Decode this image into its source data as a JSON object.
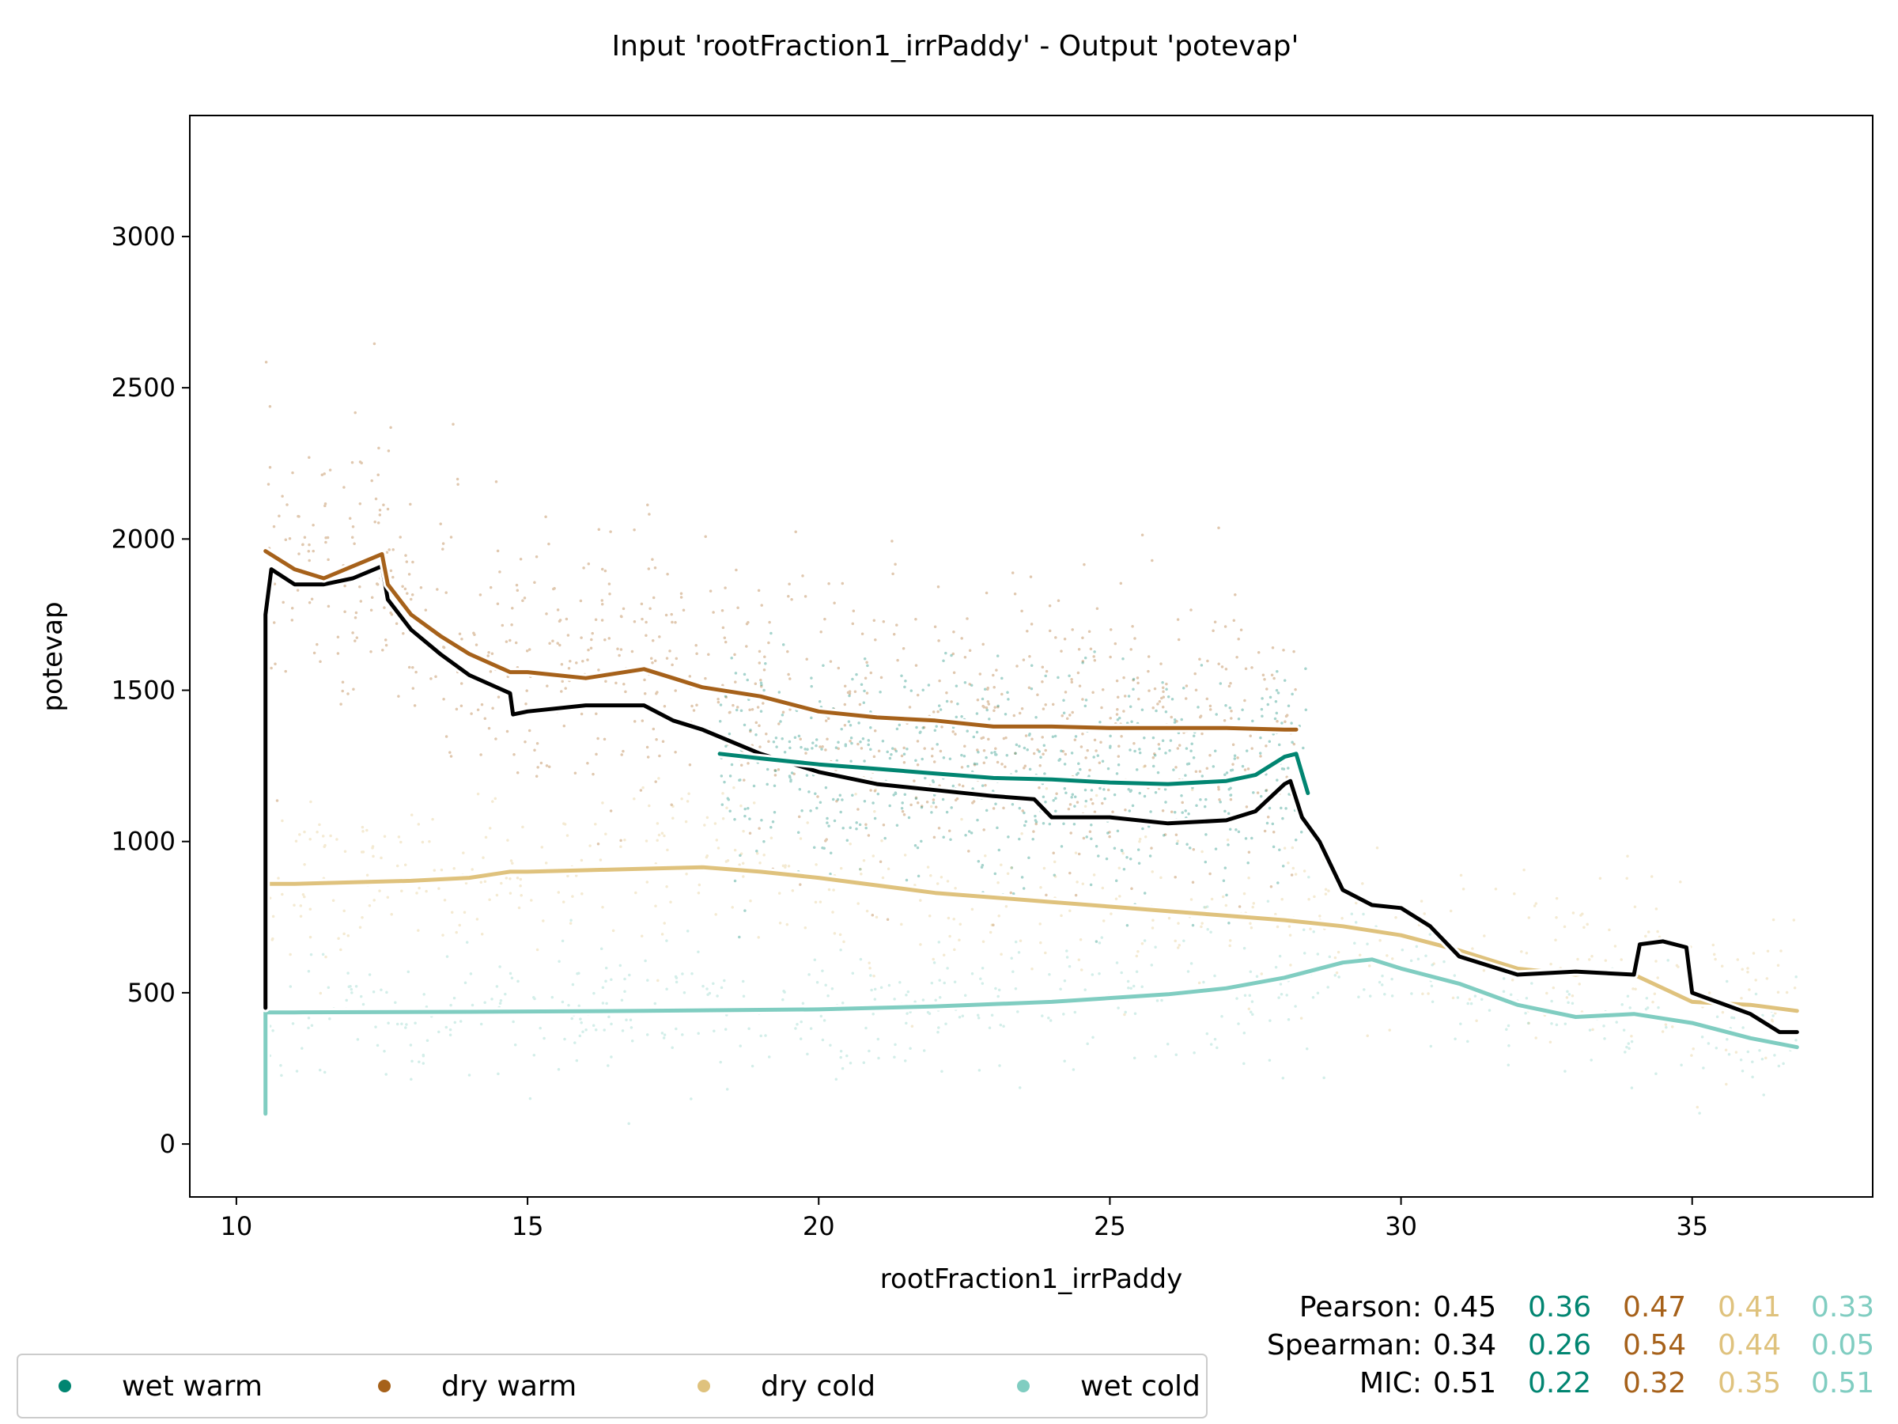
{
  "chart_data": {
    "type": "scatter",
    "title": "Input 'rootFraction1_irrPaddy' - Output 'potevap'",
    "xlabel": "rootFraction1_irrPaddy",
    "ylabel": "potevap",
    "xlim": [
      9.2,
      38.1
    ],
    "ylim": [
      -175,
      3400
    ],
    "x_ticks": [
      10,
      15,
      20,
      25,
      30,
      35
    ],
    "y_ticks": [
      0,
      500,
      1000,
      1500,
      2000,
      2500,
      3000
    ],
    "grid": false,
    "legend_position": "bottom-left",
    "colors": {
      "overall": "#000000",
      "wet warm": "#018571",
      "dry warm": "#a6611a",
      "dry cold": "#dfc27d",
      "wet cold": "#80cdc1"
    },
    "legend": [
      "wet warm",
      "dry warm",
      "dry cold",
      "wet cold"
    ],
    "series": [
      {
        "name": "overall",
        "kind": "trend",
        "x": [
          10.5,
          10.5,
          10.6,
          11.0,
          11.5,
          12.0,
          12.5,
          12.6,
          13.0,
          13.5,
          14.0,
          14.7,
          14.75,
          15.0,
          16.0,
          17.0,
          17.5,
          18.0,
          19.0,
          20.0,
          21.0,
          22.0,
          23.0,
          23.7,
          24.0,
          25.0,
          26.0,
          27.0,
          27.5,
          28.0,
          28.1,
          28.3,
          28.6,
          29.0,
          29.5,
          30.0,
          30.5,
          31.0,
          32.0,
          33.0,
          34.0,
          34.1,
          34.5,
          34.9,
          35.0,
          36.0,
          36.5,
          36.8
        ],
        "y": [
          450,
          1750,
          1900,
          1850,
          1850,
          1870,
          1910,
          1800,
          1700,
          1620,
          1550,
          1490,
          1420,
          1430,
          1450,
          1450,
          1400,
          1370,
          1290,
          1230,
          1190,
          1170,
          1150,
          1140,
          1080,
          1080,
          1060,
          1070,
          1100,
          1190,
          1200,
          1080,
          1000,
          840,
          790,
          780,
          720,
          620,
          560,
          570,
          560,
          660,
          670,
          650,
          500,
          430,
          370,
          370
        ]
      },
      {
        "name": "wet warm",
        "kind": "trend",
        "x": [
          18.3,
          19.0,
          20.0,
          21.0,
          22.0,
          23.0,
          24.0,
          25.0,
          26.0,
          27.0,
          27.5,
          28.0,
          28.2,
          28.4
        ],
        "y": [
          1290,
          1275,
          1255,
          1240,
          1225,
          1210,
          1205,
          1195,
          1190,
          1200,
          1220,
          1280,
          1290,
          1160
        ]
      },
      {
        "name": "dry warm",
        "kind": "trend",
        "x": [
          10.5,
          11.0,
          11.5,
          12.0,
          12.5,
          12.6,
          13.0,
          13.5,
          14.0,
          14.7,
          15.0,
          16.0,
          17.0,
          17.5,
          18.0,
          19.0,
          20.0,
          21.0,
          22.0,
          23.0,
          24.0,
          25.0,
          26.0,
          27.0,
          28.0,
          28.2
        ],
        "y": [
          1960,
          1900,
          1870,
          1910,
          1950,
          1850,
          1750,
          1680,
          1620,
          1560,
          1560,
          1540,
          1570,
          1540,
          1510,
          1480,
          1430,
          1410,
          1400,
          1380,
          1380,
          1375,
          1375,
          1375,
          1370,
          1370
        ]
      },
      {
        "name": "dry cold",
        "kind": "trend",
        "x": [
          10.5,
          11.0,
          12.0,
          13.0,
          14.0,
          14.7,
          15.0,
          16.0,
          17.0,
          18.0,
          19.0,
          20.0,
          22.0,
          24.0,
          26.0,
          28.0,
          29.0,
          30.0,
          31.0,
          32.0,
          33.0,
          33.5,
          34.0,
          35.0,
          36.0,
          36.8
        ],
        "y": [
          860,
          860,
          865,
          870,
          880,
          900,
          900,
          905,
          910,
          915,
          900,
          880,
          830,
          800,
          770,
          740,
          720,
          690,
          640,
          580,
          560,
          570,
          560,
          470,
          460,
          440
        ]
      },
      {
        "name": "wet cold",
        "kind": "trend",
        "x": [
          10.5,
          10.5,
          11.0,
          14.0,
          17.0,
          20.0,
          22.0,
          24.0,
          26.0,
          27.0,
          28.0,
          29.0,
          29.5,
          30.0,
          31.0,
          32.0,
          33.0,
          34.0,
          35.0,
          36.0,
          36.8
        ],
        "y": [
          100,
          435,
          435,
          437,
          440,
          445,
          455,
          470,
          495,
          515,
          550,
          600,
          610,
          580,
          530,
          460,
          420,
          430,
          400,
          350,
          320
        ]
      }
    ],
    "stats": {
      "rows": [
        {
          "label": "Pearson:",
          "values": [
            "0.45",
            "0.36",
            "0.47",
            "0.41",
            "0.33"
          ]
        },
        {
          "label": "Spearman:",
          "values": [
            "0.34",
            "0.26",
            "0.54",
            "0.44",
            "0.05"
          ]
        },
        {
          "label": "MIC:",
          "values": [
            "0.51",
            "0.22",
            "0.32",
            "0.35",
            "0.51"
          ]
        }
      ]
    }
  }
}
